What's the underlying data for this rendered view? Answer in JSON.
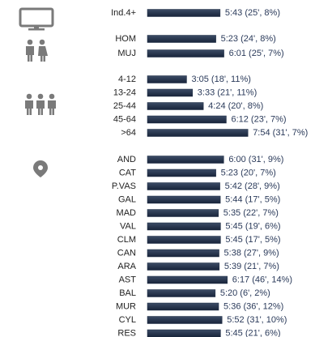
{
  "chart_data": [
    {
      "type": "bar",
      "color": "#1f2d44",
      "categories": [
        "Ind.4+"
      ],
      "values": [
        343
      ],
      "value_labels": [
        "5:43 (25', 8%)"
      ]
    },
    {
      "type": "bar",
      "color": "#1f2d44",
      "categories": [
        "HOM",
        "MUJ"
      ],
      "values": [
        323,
        361
      ],
      "value_labels": [
        "5:23 (24', 8%)",
        "6:01 (25', 7%)"
      ]
    },
    {
      "type": "bar",
      "color": "#1f2d44",
      "categories": [
        "4-12",
        "13-24",
        "25-44",
        "45-64",
        ">64"
      ],
      "values": [
        185,
        213,
        264,
        372,
        474
      ],
      "value_labels": [
        "3:05 (18', 11%)",
        "3:33 (21', 11%)",
        "4:24 (20', 8%)",
        "6:12 (23', 7%)",
        "7:54 (31', 7%)"
      ]
    },
    {
      "type": "bar",
      "color": "#1f2d44",
      "categories": [
        "AND",
        "CAT",
        "P.VAS",
        "GAL",
        "MAD",
        "VAL",
        "CLM",
        "CAN",
        "ARA",
        "AST",
        "BAL",
        "MUR",
        "CYL",
        "RES"
      ],
      "values": [
        360,
        323,
        342,
        344,
        335,
        345,
        345,
        338,
        339,
        377,
        320,
        336,
        352,
        345
      ],
      "value_labels": [
        "6:00 (31', 9%)",
        "5:23 (20', 7%)",
        "5:42 (28', 9%)",
        "5:44 (17', 5%)",
        "5:35 (22', 7%)",
        "5:45 (19', 6%)",
        "5:45 (17', 5%)",
        "5:38 (27', 9%)",
        "5:39 (21', 7%)",
        "6:17 (46', 14%)",
        "5:20 (6', 2%)",
        "5:36 (36', 12%)",
        "5:52 (31', 10%)",
        "5:45 (21', 6%)"
      ]
    }
  ]
}
